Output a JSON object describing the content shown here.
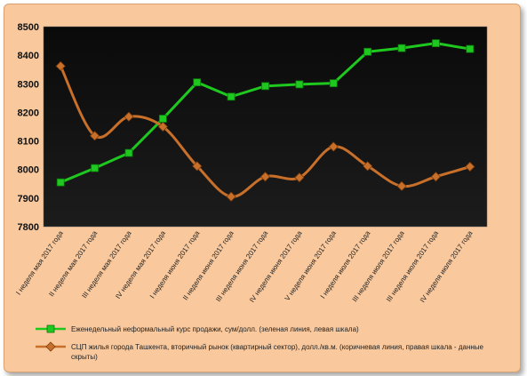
{
  "chart_data": {
    "type": "line",
    "categories": [
      "I неделя мая 2017 года",
      "II неделя мая 2017 года",
      "III неделя мая 2017 года",
      "IV неделя мая 2017 года",
      "I неделя июня 2017 года",
      "II неделя июня 2017 года",
      "III неделя июня 2017 года",
      "IV неделя июня 2017 года",
      "V неделя июня 2017 года",
      "I неделя июля 2017 года",
      "III неделя июля 2017 года",
      "III неделя июля 2017 года",
      "IV неделя июля 2017 года"
    ],
    "ylim": [
      7800,
      8500
    ],
    "yticks": [
      "7800",
      "7900",
      "8000",
      "8100",
      "8200",
      "8300",
      "8400",
      "8500"
    ],
    "grid": false,
    "legend_position": "bottom",
    "series": [
      {
        "name": "Еженедельный неформальный курс продажи, сум/долл. (зеленая линия, левая шкала)",
        "color": "#1ec81e",
        "marker": "square",
        "values": [
          7955,
          8005,
          8058,
          8178,
          8305,
          8255,
          8292,
          8298,
          8302,
          8412,
          8425,
          8442,
          8422
        ]
      },
      {
        "name": "СЦП жилья города Ташкента, вторичный рынок (квартирный сектор), долл./кв.м. (коричневая линия, правая шкала - данные скрыты)",
        "color": "#c8702a",
        "marker": "diamond",
        "values": [
          8362,
          8118,
          8185,
          8150,
          8012,
          7905,
          7975,
          7972,
          8080,
          8012,
          7942,
          7975,
          8010
        ]
      }
    ]
  }
}
